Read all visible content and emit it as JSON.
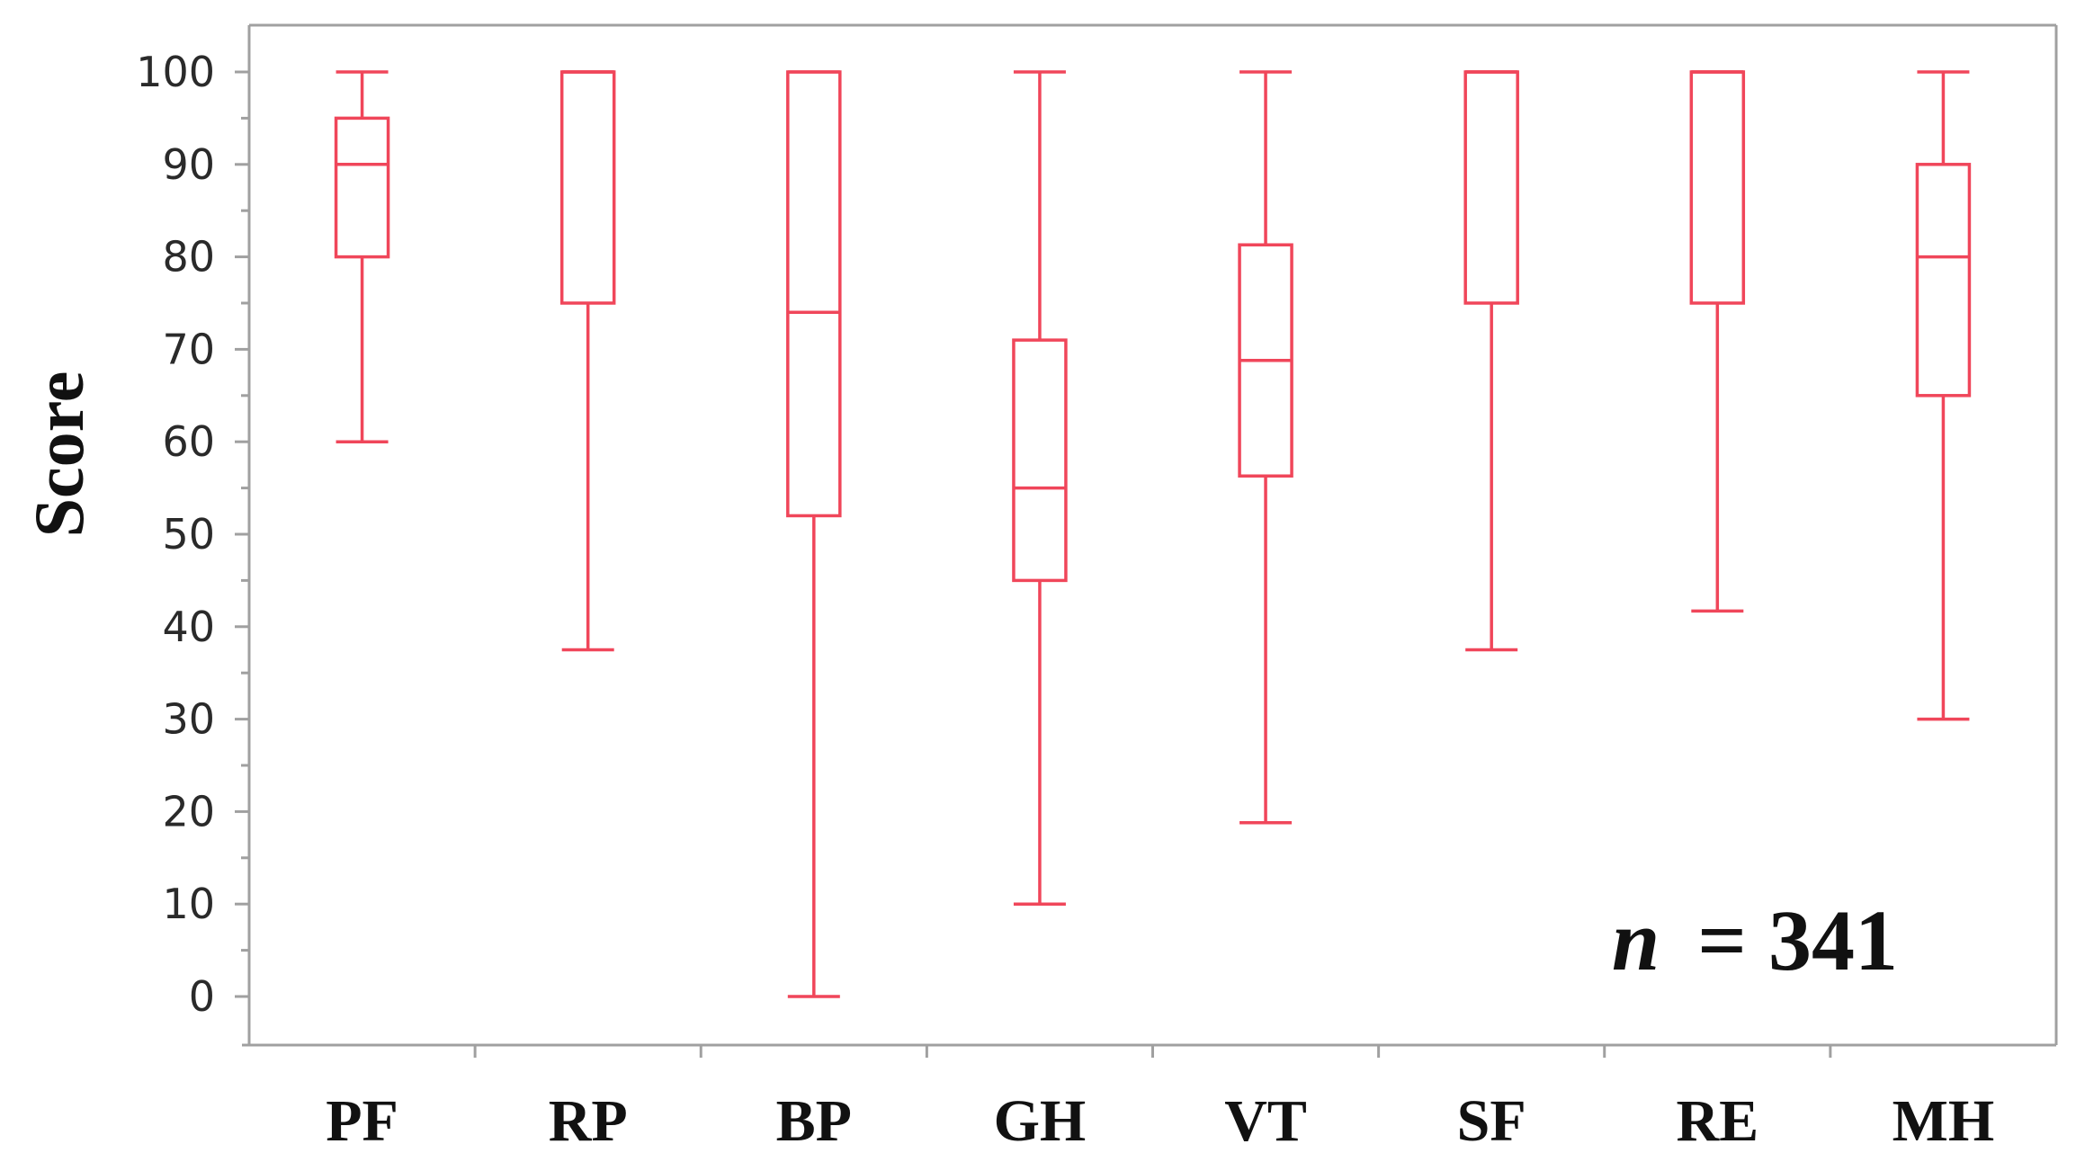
{
  "chart_data": {
    "type": "box",
    "categories": [
      "PF",
      "RP",
      "BP",
      "GH",
      "VT",
      "SF",
      "RE",
      "MH"
    ],
    "series": [
      {
        "boxes": [
          {
            "category": "PF",
            "min": 60,
            "q1": 80,
            "median": 90,
            "q3": 95,
            "max": 100
          },
          {
            "category": "RP",
            "min": 37.5,
            "q1": 75,
            "median": 100,
            "q3": 100,
            "max": 100
          },
          {
            "category": "BP",
            "min": 0,
            "q1": 52,
            "median": 74,
            "q3": 100,
            "max": 100
          },
          {
            "category": "GH",
            "min": 10,
            "q1": 45,
            "median": 55,
            "q3": 71,
            "max": 100
          },
          {
            "category": "VT",
            "min": 18.8,
            "q1": 56.3,
            "median": 68.8,
            "q3": 81.3,
            "max": 100
          },
          {
            "category": "SF",
            "min": 37.5,
            "q1": 75,
            "median": 100,
            "q3": 100,
            "max": 100
          },
          {
            "category": "RE",
            "min": 41.7,
            "q1": 75,
            "median": 100,
            "q3": 100,
            "max": 100
          },
          {
            "category": "MH",
            "min": 30,
            "q1": 65,
            "median": 80,
            "q3": 90,
            "max": 100
          }
        ]
      }
    ],
    "ylabel": "Score",
    "xlabel": "",
    "ylim": [
      -5,
      105
    ],
    "yticks": [
      0,
      10,
      20,
      30,
      40,
      50,
      60,
      70,
      80,
      90,
      100
    ],
    "grid": false,
    "annotation_prefix": "n",
    "annotation_suffix": "= 341",
    "box_color": "#f0465a"
  }
}
